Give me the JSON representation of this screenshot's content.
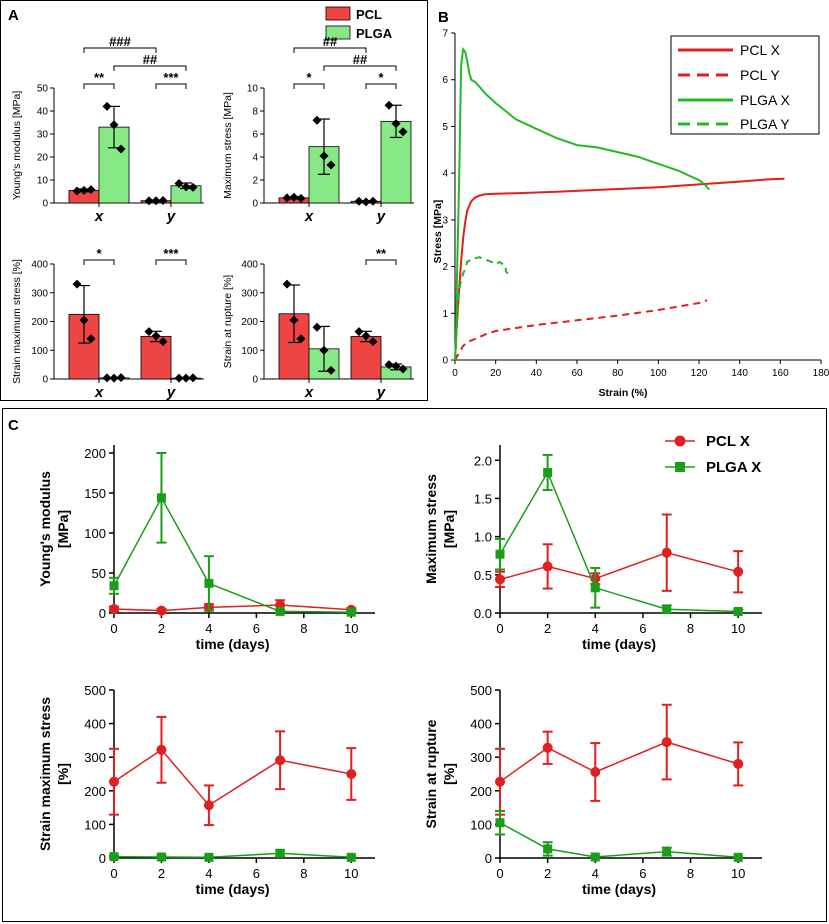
{
  "panels": {
    "a": "A",
    "b": "B",
    "c": "C"
  },
  "colors": {
    "pcl": "#ef4444",
    "plga": "#86e986",
    "pcl_line": "#e02020",
    "plga_line": "#22b922",
    "plga_dark": "#1a9e1a"
  },
  "legend_a": [
    "PCL",
    "PLGA"
  ],
  "legend_b": [
    "PCL X",
    "PCL Y",
    "PLGA X",
    "PLGA Y"
  ],
  "legend_c": [
    "PCL X",
    "PLGA X"
  ],
  "chart_data": [
    {
      "id": "a1",
      "type": "bar",
      "ylabel": "Young's modulus [MPa]",
      "categories": [
        "x",
        "y"
      ],
      "ylim": [
        0,
        50
      ],
      "yticks": [
        0,
        10,
        20,
        30,
        40,
        50
      ],
      "series": [
        {
          "name": "PCL",
          "values": [
            5.5,
            1.0
          ],
          "err": [
            0.6,
            0.3
          ],
          "points": [
            [
              5.2,
              5.5,
              5.8
            ],
            [
              0.9,
              1.0,
              1.1
            ]
          ]
        },
        {
          "name": "PLGA",
          "values": [
            33,
            7.5
          ],
          "err": [
            9,
            1.2
          ],
          "points": [
            [
              42,
              34,
              23.5
            ],
            [
              8.5,
              7.0,
              6.8
            ]
          ]
        }
      ],
      "brackets": [
        {
          "from": [
            0,
            0
          ],
          "to": [
            0,
            1
          ],
          "label": "**",
          "level": 0
        },
        {
          "from": [
            1,
            0
          ],
          "to": [
            1,
            1
          ],
          "label": "***",
          "level": 0
        },
        {
          "from": [
            0,
            1
          ],
          "to": [
            1,
            1
          ],
          "label": "##",
          "level": 1
        },
        {
          "from": [
            0,
            0
          ],
          "to": [
            1,
            0
          ],
          "label": "###",
          "level": 2
        }
      ]
    },
    {
      "id": "a2",
      "type": "bar",
      "ylabel": "Maximum stress [MPa]",
      "categories": [
        "x",
        "y"
      ],
      "ylim": [
        0,
        10
      ],
      "yticks": [
        0,
        2,
        4,
        6,
        8,
        10
      ],
      "series": [
        {
          "name": "PCL",
          "values": [
            0.45,
            0.15
          ],
          "err": [
            0.1,
            0.05
          ],
          "points": [
            [
              0.45,
              0.5,
              0.4
            ],
            [
              0.15,
              0.1,
              0.15
            ]
          ]
        },
        {
          "name": "PLGA",
          "values": [
            4.9,
            7.1
          ],
          "err": [
            2.4,
            1.4
          ],
          "points": [
            [
              7.2,
              4.1,
              3.3
            ],
            [
              8.5,
              6.9,
              6.2
            ]
          ]
        }
      ],
      "brackets": [
        {
          "from": [
            0,
            0
          ],
          "to": [
            0,
            1
          ],
          "label": "*",
          "level": 0
        },
        {
          "from": [
            1,
            0
          ],
          "to": [
            1,
            1
          ],
          "label": "*",
          "level": 0
        },
        {
          "from": [
            0,
            1
          ],
          "to": [
            1,
            1
          ],
          "label": "##",
          "level": 1
        },
        {
          "from": [
            0,
            0
          ],
          "to": [
            1,
            0
          ],
          "label": "##",
          "level": 2
        }
      ]
    },
    {
      "id": "a3",
      "type": "bar",
      "ylabel": "Strain maximum stress [%]",
      "categories": [
        "x",
        "y"
      ],
      "ylim": [
        0,
        400
      ],
      "yticks": [
        0,
        100,
        200,
        300,
        400
      ],
      "series": [
        {
          "name": "PCL",
          "values": [
            225,
            148
          ],
          "err": [
            100,
            18
          ],
          "points": [
            [
              330,
              205,
              140
            ],
            [
              165,
              150,
              130
            ]
          ]
        },
        {
          "name": "PLGA",
          "values": [
            4,
            3
          ],
          "err": [
            1,
            1
          ],
          "points": [
            [
              4,
              3,
              5
            ],
            [
              3,
              3,
              4
            ]
          ]
        }
      ],
      "brackets": [
        {
          "from": [
            0,
            0
          ],
          "to": [
            0,
            1
          ],
          "label": "*",
          "level": 0
        },
        {
          "from": [
            1,
            0
          ],
          "to": [
            1,
            1
          ],
          "label": "***",
          "level": 0
        }
      ]
    },
    {
      "id": "a4",
      "type": "bar",
      "ylabel": "Strain at rupture [%]",
      "categories": [
        "x",
        "y"
      ],
      "ylim": [
        0,
        400
      ],
      "yticks": [
        0,
        100,
        200,
        300,
        400
      ],
      "series": [
        {
          "name": "PCL",
          "values": [
            227,
            148
          ],
          "err": [
            100,
            18
          ],
          "points": [
            [
              330,
              205,
              140
            ],
            [
              165,
              150,
              130
            ]
          ]
        },
        {
          "name": "PLGA",
          "values": [
            105,
            42
          ],
          "err": [
            78,
            10
          ],
          "points": [
            [
              180,
              100,
              30
            ],
            [
              50,
              45,
              35
            ]
          ]
        }
      ],
      "brackets": [
        {
          "from": [
            1,
            0
          ],
          "to": [
            1,
            1
          ],
          "label": "**",
          "level": 0
        }
      ]
    },
    {
      "id": "b",
      "type": "line",
      "xlabel": "Strain  (%)",
      "ylabel": "Stress  [MPa]",
      "xlim": [
        0,
        180
      ],
      "ylim": [
        0,
        7
      ],
      "xticks": [
        0,
        20,
        40,
        60,
        80,
        100,
        120,
        140,
        160,
        180
      ],
      "yticks": [
        0,
        1,
        2,
        3,
        4,
        5,
        6,
        7
      ],
      "series": [
        {
          "name": "PCL X",
          "dashed": false,
          "color": "pcl_line",
          "x": [
            0,
            1,
            2,
            3,
            4,
            5,
            6,
            8,
            10,
            12,
            15,
            20,
            30,
            50,
            80,
            100,
            120,
            140,
            155,
            162
          ],
          "y": [
            0,
            0.8,
            1.5,
            2.1,
            2.6,
            2.95,
            3.2,
            3.4,
            3.48,
            3.52,
            3.55,
            3.56,
            3.57,
            3.6,
            3.66,
            3.7,
            3.76,
            3.82,
            3.87,
            3.88
          ]
        },
        {
          "name": "PCL Y",
          "dashed": true,
          "color": "pcl_line",
          "x": [
            0,
            2,
            4,
            6,
            8,
            10,
            15,
            20,
            40,
            60,
            80,
            100,
            120,
            124
          ],
          "y": [
            0,
            0.15,
            0.3,
            0.38,
            0.42,
            0.45,
            0.55,
            0.62,
            0.75,
            0.85,
            0.95,
            1.07,
            1.22,
            1.28
          ]
        },
        {
          "name": "PLGA X",
          "dashed": false,
          "color": "plga_line",
          "x": [
            0,
            0.5,
            1,
            2,
            3,
            4,
            5,
            6,
            7,
            8,
            10,
            15,
            20,
            30,
            40,
            50,
            60,
            70,
            80,
            90,
            100,
            110,
            115,
            120,
            123,
            125
          ],
          "y": [
            0,
            0.4,
            1.8,
            3.8,
            6.3,
            6.65,
            6.6,
            6.4,
            6.15,
            6.0,
            5.95,
            5.7,
            5.5,
            5.15,
            4.95,
            4.75,
            4.6,
            4.55,
            4.45,
            4.35,
            4.2,
            4.05,
            3.95,
            3.85,
            3.75,
            3.65
          ]
        },
        {
          "name": "PLGA Y",
          "dashed": true,
          "color": "plga_line",
          "x": [
            0,
            0.5,
            1,
            2,
            3,
            4,
            5,
            6,
            8,
            10,
            12,
            15,
            18,
            20,
            22,
            25,
            25,
            26
          ],
          "y": [
            0,
            0.3,
            1.0,
            1.5,
            1.7,
            1.85,
            1.95,
            2.1,
            2.15,
            2.18,
            2.2,
            2.15,
            2.1,
            2.05,
            2.1,
            2.0,
            1.9,
            1.85
          ]
        }
      ]
    },
    {
      "id": "c1",
      "type": "line",
      "ylabel": "Young's modulus [MPa]",
      "xlabel": "time (days)",
      "xlim": [
        0,
        11
      ],
      "ylim": [
        0,
        210
      ],
      "xticks": [
        0,
        2,
        4,
        6,
        8,
        10
      ],
      "yticks": [
        0,
        50,
        100,
        150,
        200
      ],
      "x": [
        0,
        2,
        4,
        7,
        10
      ],
      "series": [
        {
          "name": "PCL X",
          "values": [
            5,
            3,
            7,
            10,
            4
          ],
          "err": [
            3,
            2,
            4,
            6,
            2
          ],
          "marker": "circle"
        },
        {
          "name": "PLGA X",
          "values": [
            34,
            144,
            37,
            2,
            1
          ],
          "err": [
            10,
            56,
            34,
            2,
            1
          ],
          "marker": "square"
        }
      ]
    },
    {
      "id": "c2",
      "type": "line",
      "ylabel": "Maximum stress [MPa]",
      "xlabel": "time (days)",
      "xlim": [
        0,
        11
      ],
      "ylim": [
        0,
        2.2
      ],
      "xticks": [
        0,
        2,
        4,
        6,
        8,
        10
      ],
      "yticks": [
        0.0,
        0.5,
        1.0,
        1.5,
        2.0
      ],
      "x": [
        0,
        2,
        4,
        7,
        10
      ],
      "series": [
        {
          "name": "PCL X",
          "values": [
            0.44,
            0.61,
            0.45,
            0.79,
            0.54
          ],
          "err": [
            0.1,
            0.29,
            0.07,
            0.5,
            0.27
          ],
          "marker": "circle"
        },
        {
          "name": "PLGA X",
          "values": [
            0.77,
            1.84,
            0.33,
            0.05,
            0.02
          ],
          "err": [
            0.2,
            0.23,
            0.26,
            0.05,
            0.02
          ],
          "marker": "square"
        }
      ]
    },
    {
      "id": "c3",
      "type": "line",
      "ylabel": "Strain maximum stress [%]",
      "xlabel": "time (days)",
      "xlim": [
        0,
        11
      ],
      "ylim": [
        0,
        500
      ],
      "xticks": [
        0,
        2,
        4,
        6,
        8,
        10
      ],
      "yticks": [
        0,
        100,
        200,
        300,
        400,
        500
      ],
      "x": [
        0,
        2,
        4,
        7,
        10
      ],
      "series": [
        {
          "name": "PCL X",
          "values": [
            227,
            322,
            157,
            291,
            250
          ],
          "err": [
            98,
            98,
            59,
            86,
            77
          ],
          "marker": "circle"
        },
        {
          "name": "PLGA X",
          "values": [
            4,
            3,
            2,
            14,
            2
          ],
          "err": [
            3,
            4,
            2,
            10,
            2
          ],
          "marker": "square"
        }
      ]
    },
    {
      "id": "c4",
      "type": "line",
      "ylabel": "Strain at rupture [%]",
      "xlabel": "time (days)",
      "xlim": [
        0,
        11
      ],
      "ylim": [
        0,
        500
      ],
      "xticks": [
        0,
        2,
        4,
        6,
        8,
        10
      ],
      "yticks": [
        0,
        100,
        200,
        300,
        400,
        500
      ],
      "x": [
        0,
        2,
        4,
        7,
        10
      ],
      "series": [
        {
          "name": "PCL X",
          "values": [
            227,
            328,
            256,
            345,
            280
          ],
          "err": [
            98,
            48,
            86,
            111,
            64
          ],
          "marker": "circle"
        },
        {
          "name": "PLGA X",
          "values": [
            105,
            27,
            3,
            19,
            2
          ],
          "err": [
            35,
            20,
            3,
            12,
            2
          ],
          "marker": "square"
        }
      ]
    }
  ]
}
